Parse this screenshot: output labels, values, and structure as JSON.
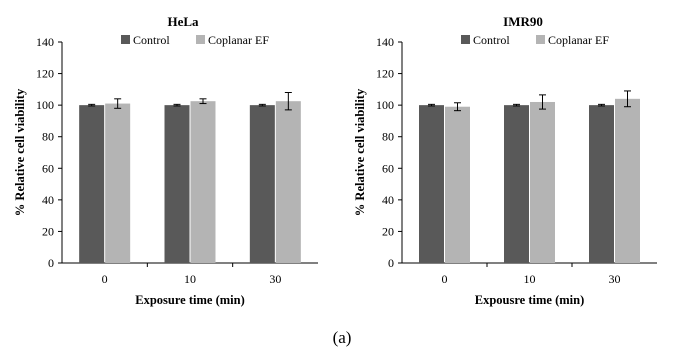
{
  "caption": "(a)",
  "colors": {
    "control": "#595959",
    "treated": "#b4b4b4",
    "axis": "#000000",
    "error": "#000000"
  },
  "chart_data": [
    {
      "type": "bar",
      "title": "HeLa",
      "xlabel": "Exposure time (min)",
      "ylabel": "% Relative cell viability",
      "categories": [
        "0",
        "10",
        "30"
      ],
      "ylim": [
        0,
        140
      ],
      "yticks": [
        0,
        20,
        40,
        60,
        80,
        100,
        120,
        140
      ],
      "grid": false,
      "legend_position": "top",
      "series": [
        {
          "name": "Control",
          "values": [
            100,
            100,
            100
          ],
          "errors": [
            0.5,
            0.5,
            0.5
          ]
        },
        {
          "name": "Coplanar EF",
          "values": [
            101,
            102.5,
            102.5
          ],
          "errors": [
            3,
            1.5,
            5.5
          ]
        }
      ]
    },
    {
      "type": "bar",
      "title": "IMR90",
      "xlabel": "Expousre time (min)",
      "ylabel": "% Relative cell viability",
      "categories": [
        "0",
        "10",
        "30"
      ],
      "ylim": [
        0,
        140
      ],
      "yticks": [
        0,
        20,
        40,
        60,
        80,
        100,
        120,
        140
      ],
      "grid": false,
      "legend_position": "top",
      "series": [
        {
          "name": "Control",
          "values": [
            100,
            100,
            100
          ],
          "errors": [
            0.5,
            0.5,
            0.5
          ]
        },
        {
          "name": "Coplanar EF",
          "values": [
            99,
            102,
            104
          ],
          "errors": [
            2.5,
            4.5,
            5
          ]
        }
      ]
    }
  ]
}
